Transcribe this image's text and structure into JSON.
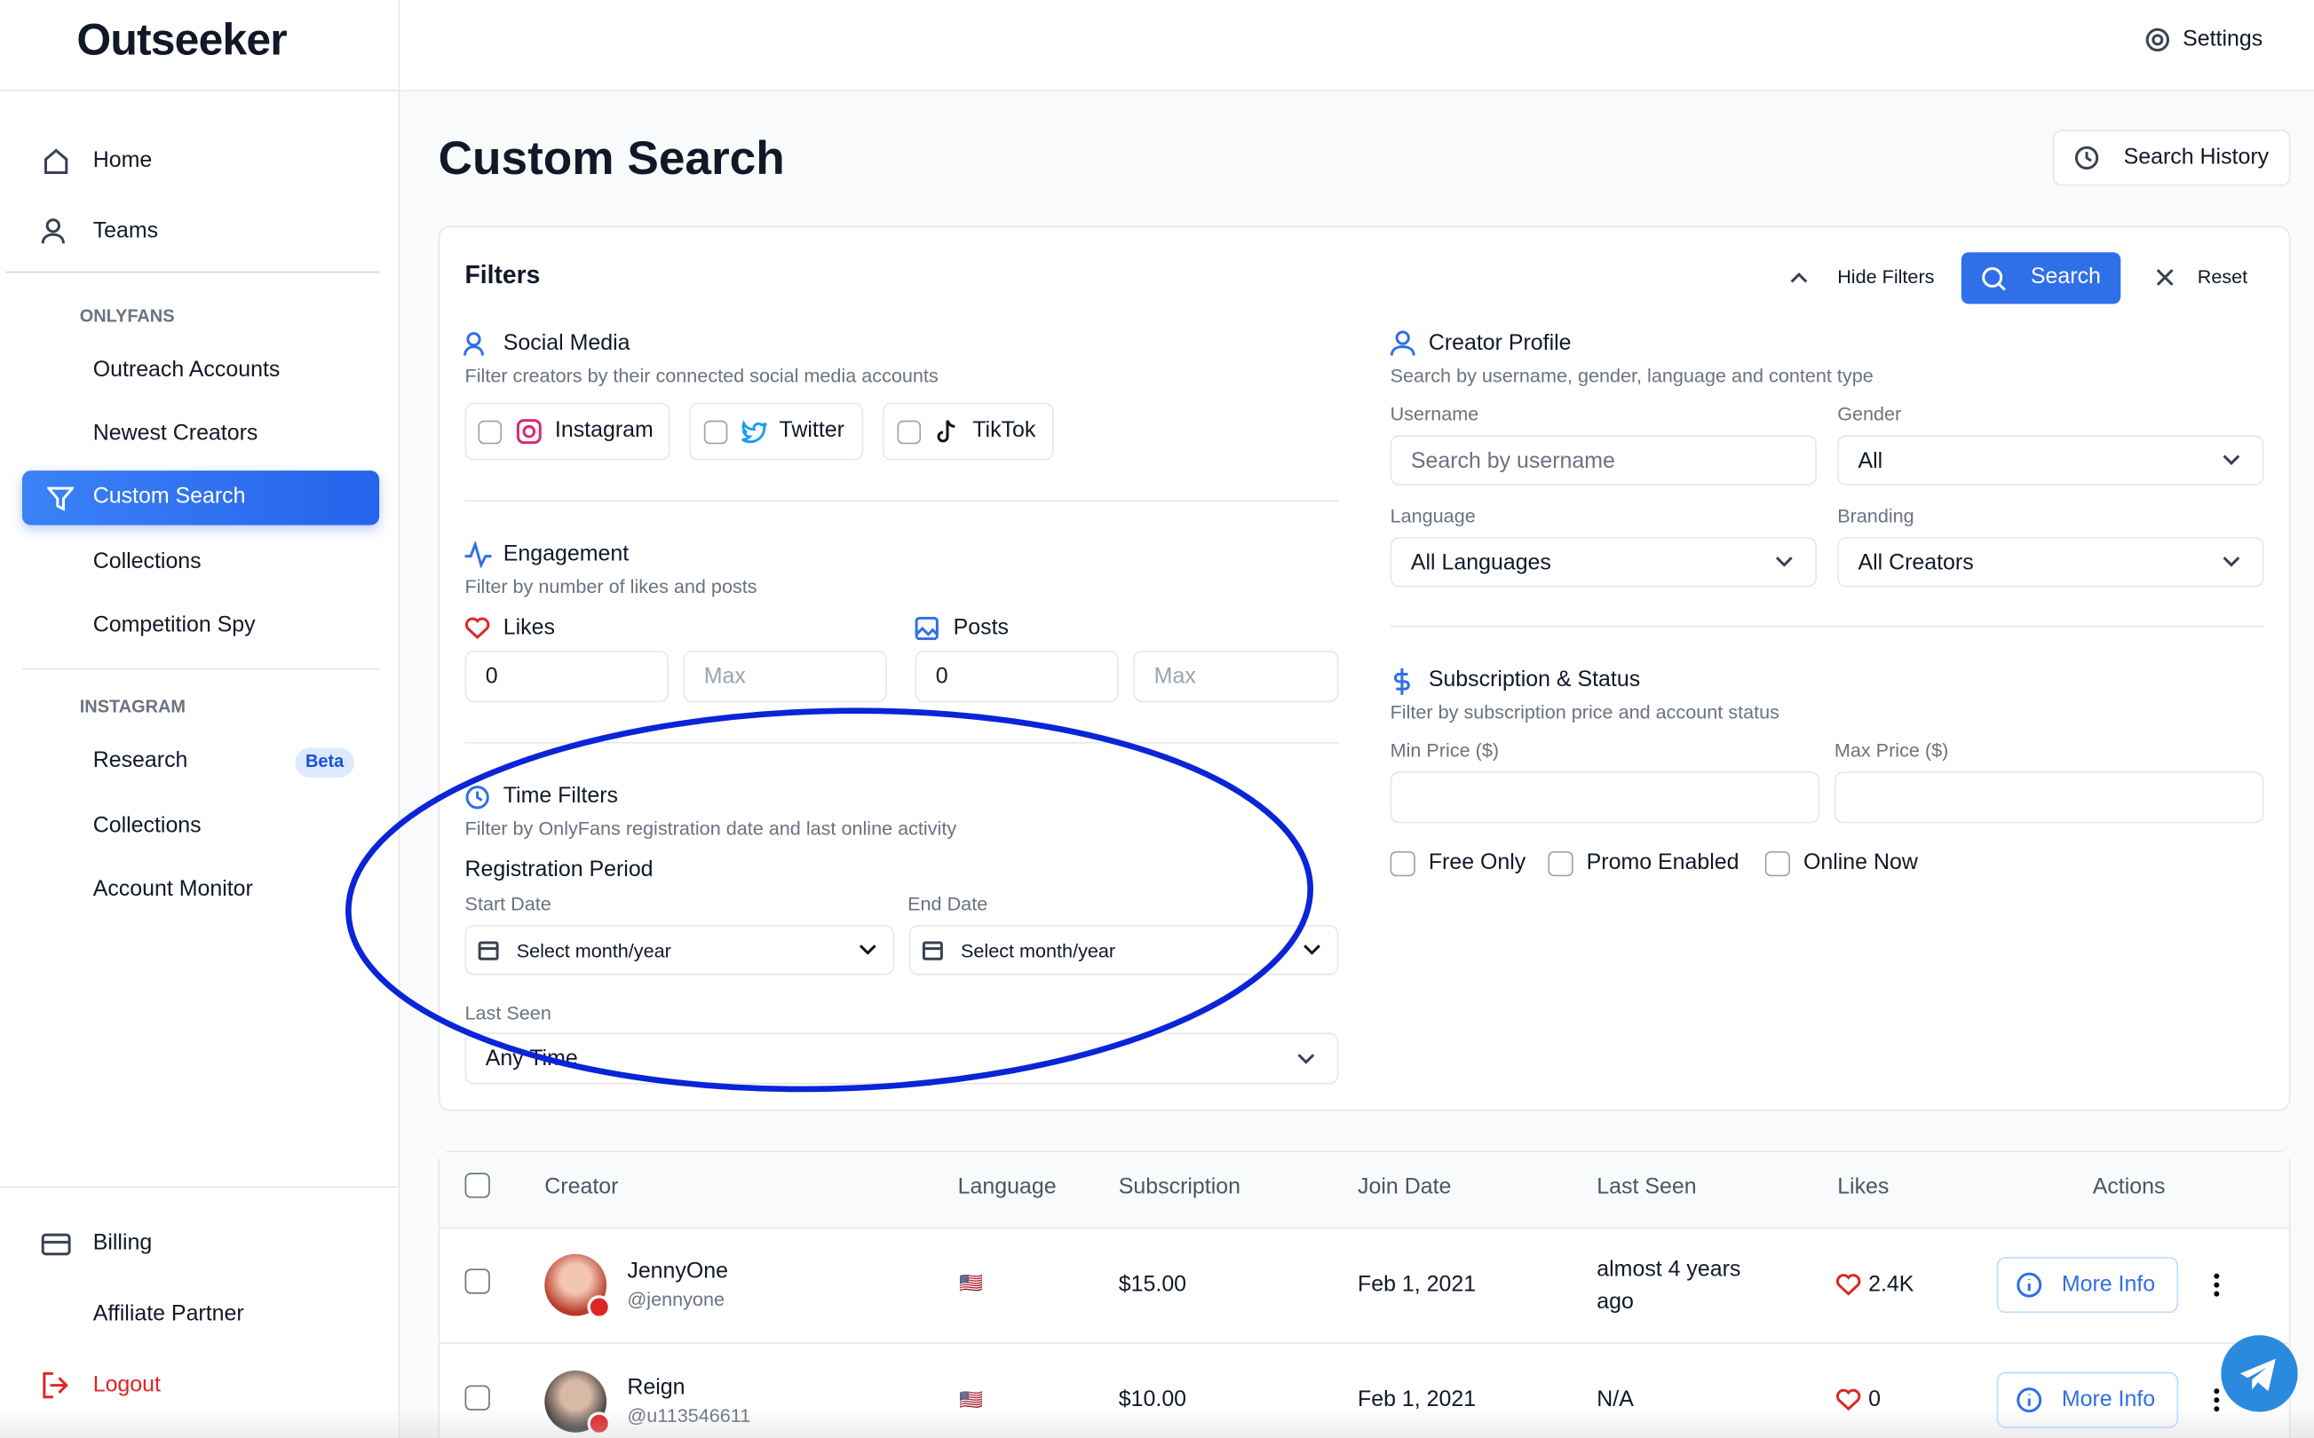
{
  "sidebar": {
    "brand": "Outseeker",
    "nav": [
      "Home",
      "Teams"
    ],
    "onlyfans": {
      "heading": "ONLYFANS",
      "items": [
        "Outreach Accounts",
        "Newest Creators",
        "Custom Search",
        "Collections",
        "Competition Spy"
      ]
    },
    "instagram": {
      "heading": "INSTAGRAM",
      "items": [
        "Research",
        "Collections",
        "Account Monitor"
      ],
      "badge": "Beta"
    },
    "footer": [
      "Billing",
      "Affiliate Partner",
      "Logout"
    ]
  },
  "topbar": {
    "settings": "Settings"
  },
  "page": {
    "title": "Custom Search",
    "history": "Search History"
  },
  "filters": {
    "title": "Filters",
    "hide": "Hide Filters",
    "search": "Search",
    "reset": "Reset",
    "social": {
      "title": "Social Media",
      "subtitle": "Filter creators by their connected social media accounts",
      "options": [
        "Instagram",
        "Twitter",
        "TikTok"
      ]
    },
    "engagement": {
      "title": "Engagement",
      "subtitle": "Filter by number of likes and posts",
      "likes": "Likes",
      "posts": "Posts",
      "likes_min": "0",
      "likes_max": "Max",
      "posts_min": "0",
      "posts_max": "Max"
    },
    "time": {
      "title": "Time Filters",
      "subtitle": "Filter by OnlyFans registration date and last online activity",
      "period": "Registration Period",
      "start_label": "Start Date",
      "end_label": "End Date",
      "start": "Select month/year",
      "end": "Select month/year",
      "last_seen_label": "Last Seen",
      "last_seen": "Any Time"
    },
    "profile": {
      "title": "Creator Profile",
      "subtitle": "Search by username, gender, language and content type",
      "username_label": "Username",
      "username": "Search by username",
      "gender_label": "Gender",
      "gender": "All",
      "language_label": "Language",
      "language": "All Languages",
      "branding_label": "Branding",
      "branding": "All Creators"
    },
    "subscription": {
      "title": "Subscription & Status",
      "subtitle": "Filter by subscription price and account status",
      "min_label": "Min Price ($)",
      "max_label": "Max Price ($)",
      "options": [
        "Free Only",
        "Promo Enabled",
        "Online Now"
      ]
    }
  },
  "table": {
    "headers": [
      "Creator",
      "Language",
      "Subscription",
      "Join Date",
      "Last Seen",
      "Likes",
      "Actions"
    ],
    "rows": [
      {
        "name": "JennyOne",
        "handle": "@jennyone",
        "language": "🇺🇸",
        "subscription": "$15.00",
        "join": "Feb 1, 2021",
        "last_seen": "almost 4 years ago",
        "likes": "2.4K",
        "action": "More Info"
      },
      {
        "name": "Reign",
        "handle": "@u113546611",
        "language": "🇺🇸",
        "subscription": "$10.00",
        "join": "Feb 1, 2021",
        "last_seen": "N/A",
        "likes": "0",
        "action": "More Info"
      }
    ]
  }
}
